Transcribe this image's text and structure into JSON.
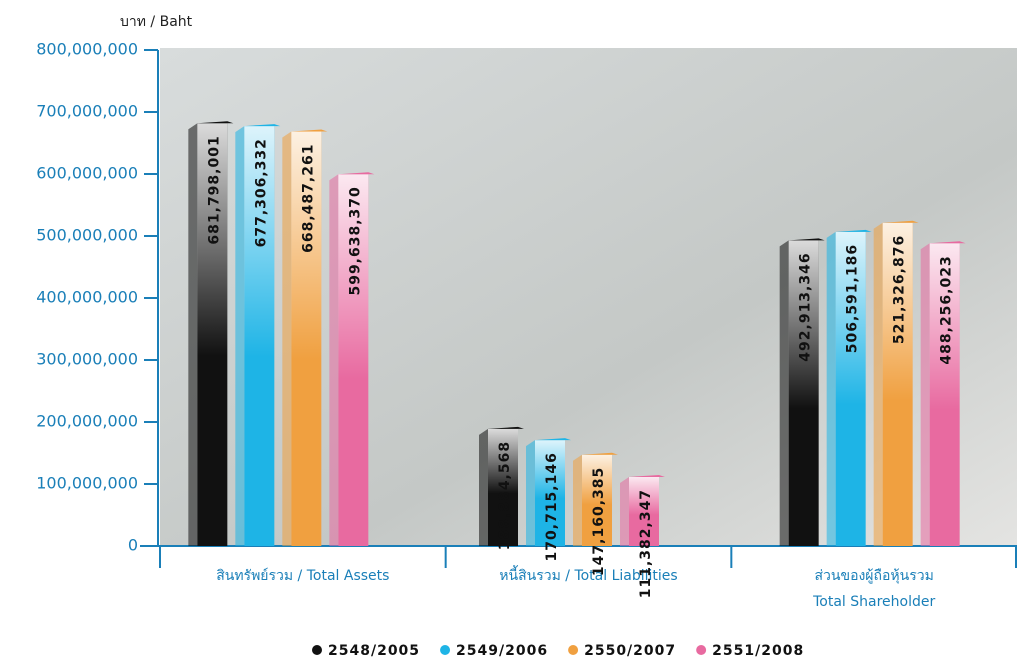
{
  "chart_data": {
    "type": "bar",
    "y_label": "บาท / Baht",
    "categories": [
      "สินทรัพย์รวม / Total Assets",
      "หนี้สินรวม / Total Liabilities",
      [
        "ส่วนของผู้ถือหุ้นรวม",
        "Total Shareholder"
      ]
    ],
    "series": [
      {
        "name": "2548/2005",
        "color": "#111111",
        "values": [
          681798001,
          188884568,
          492913346
        ],
        "value_labels": [
          "681,798,001",
          "188,884,568",
          "492,913,346"
        ]
      },
      {
        "name": "2549/2006",
        "color": "#1eb4e6",
        "values": [
          677306332,
          170715146,
          506591186
        ],
        "value_labels": [
          "677,306,332",
          "170,715,146",
          "506,591,186"
        ]
      },
      {
        "name": "2550/2007",
        "color": "#f0a040",
        "values": [
          668487261,
          147160385,
          521326876
        ],
        "value_labels": [
          "668,487,261",
          "147,160,385",
          "521,326,876"
        ]
      },
      {
        "name": "2551/2008",
        "color": "#e86aa0",
        "values": [
          599638370,
          111382347,
          488256023
        ],
        "value_labels": [
          "599,638,370",
          "111,382,347",
          "488,256,023"
        ]
      }
    ],
    "ylim": [
      0,
      800000000
    ],
    "yticks": [
      0,
      {
        "value": 100000000,
        "label": "100,000,000"
      },
      {
        "value": 200000000,
        "label": "200,000,000"
      },
      {
        "value": 300000000,
        "label": "300,000,000"
      },
      {
        "value": 400000000,
        "label": "400,000,000"
      },
      {
        "value": 500000000,
        "label": "500,000,000"
      },
      {
        "value": 600000000,
        "label": "600,000,000"
      },
      {
        "value": 700000000,
        "label": "700,000,000"
      },
      {
        "value": 800000000,
        "label": "800,000,000"
      }
    ]
  }
}
